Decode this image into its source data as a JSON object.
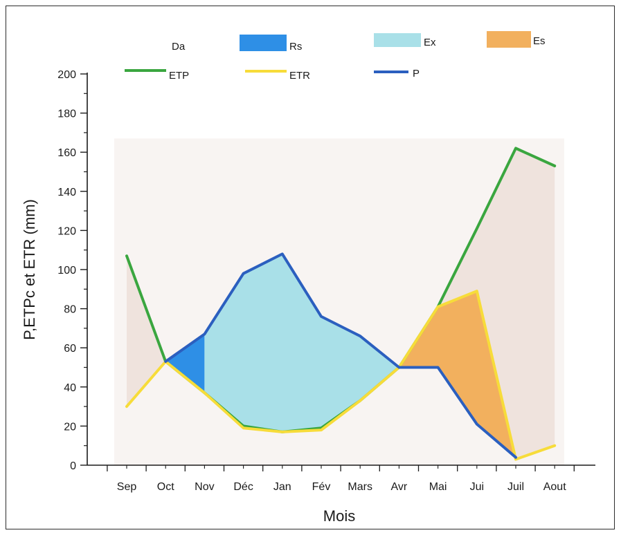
{
  "chart_data": {
    "type": "area",
    "title": "",
    "xlabel": "Mois",
    "ylabel": "P,ETPc et ETR (mm)",
    "categories": [
      "Sep",
      "Oct",
      "Nov",
      "Déc",
      "Jan",
      "Fév",
      "Mars",
      "Avr",
      "Mai",
      "Jui",
      "Juil",
      "Aout"
    ],
    "ylim": [
      0,
      200
    ],
    "yticks": [
      0,
      20,
      40,
      60,
      80,
      100,
      120,
      140,
      160,
      180,
      200
    ],
    "grid": false,
    "legend_position": "top",
    "series": [
      {
        "name": "ETP",
        "color": "#3aa63f",
        "values": [
          107,
          53,
          37,
          20,
          17,
          19,
          33,
          50,
          81,
          121,
          162,
          153
        ]
      },
      {
        "name": "ETR",
        "color": "#f7dc3a",
        "values": [
          30,
          53,
          37,
          19,
          17,
          18,
          33,
          50,
          81,
          89,
          3,
          10
        ]
      },
      {
        "name": "P",
        "color": "#2b5fbf",
        "values": [
          null,
          53,
          67,
          98,
          108,
          76,
          66,
          50,
          50,
          21,
          4,
          null
        ]
      }
    ],
    "areas": [
      {
        "name": "Da",
        "color": "#efe3dd"
      },
      {
        "name": "Rs",
        "color": "#2e8fe6"
      },
      {
        "name": "Ex",
        "color": "#a9e0e8"
      },
      {
        "name": "Es",
        "color": "#f2b05e"
      }
    ]
  }
}
